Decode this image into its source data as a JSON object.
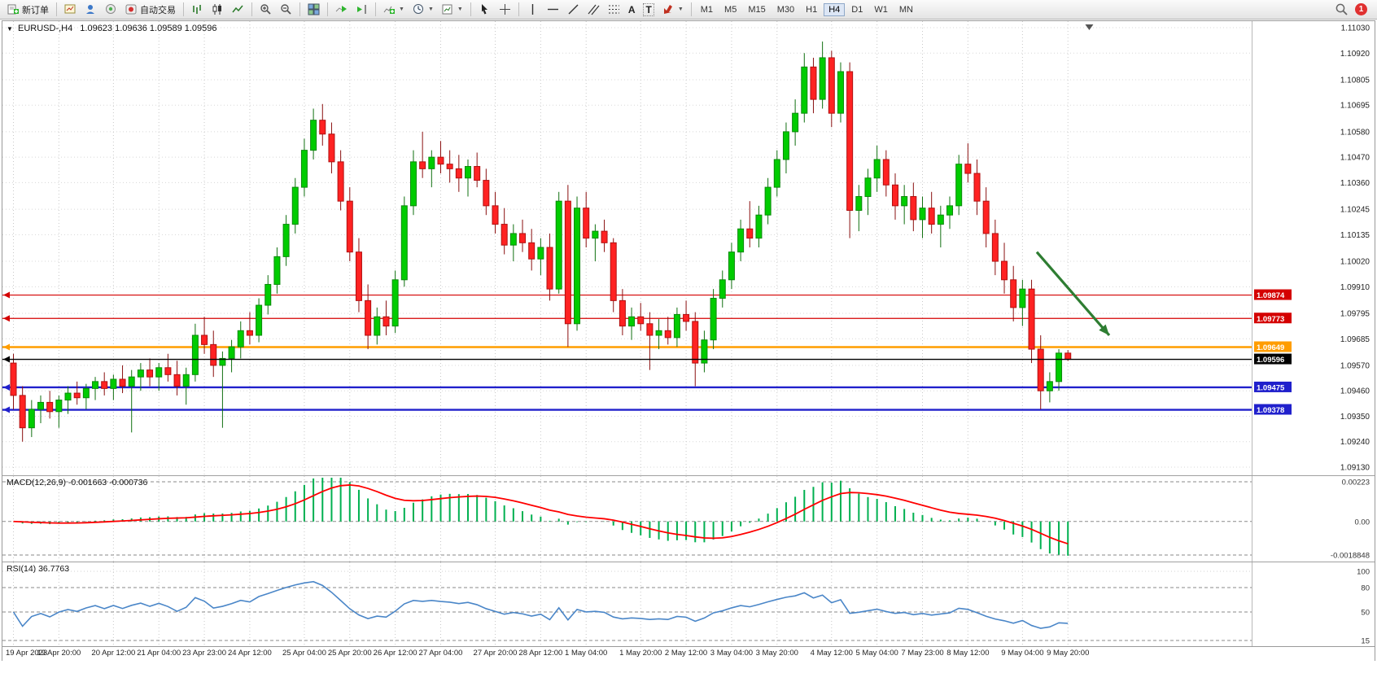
{
  "toolbar": {
    "new_order_label": "新订单",
    "autotrading_label": "自动交易",
    "timeframes": [
      "M1",
      "M5",
      "M15",
      "M30",
      "H1",
      "H4",
      "D1",
      "W1",
      "MN"
    ],
    "active_timeframe": "H4",
    "notification_count": "1",
    "text_tool_label": "A",
    "textbox_tool_label": "T"
  },
  "chart": {
    "symbol_period": "EURUSD-,H4",
    "ohlc_text": "1.09623 1.09636 1.09589 1.09596",
    "macd_label": "MACD(12,26,9) -0.001663 -0.000736",
    "rsi_label": "RSI(14) 36.7763"
  },
  "chart_data": [
    {
      "type": "candlestick",
      "symbol": "EURUSD",
      "period": "H4",
      "up_color": "#00CC00",
      "down_color": "#FF2222",
      "up_border": "#0A8A0A",
      "down_border": "#B01010",
      "x_labels": [
        "19 Apr 2023",
        "19 Apr 20:00",
        "20 Apr 12:00",
        "21 Apr 04:00",
        "23 Apr 23:00",
        "24 Apr 12:00",
        "25 Apr 04:00",
        "25 Apr 20:00",
        "26 Apr 12:00",
        "27 Apr 04:00",
        "27 Apr 20:00",
        "28 Apr 12:00",
        "1 May 04:00",
        "1 May 20:00",
        "2 May 12:00",
        "3 May 04:00",
        "3 May 20:00",
        "4 May 12:00",
        "5 May 04:00",
        "7 May 23:00",
        "8 May 12:00",
        "9 May 04:00",
        "9 May 20:00"
      ],
      "y_ticks": [
        "1.11030",
        "1.10920",
        "1.10805",
        "1.10695",
        "1.10580",
        "1.10470",
        "1.10360",
        "1.10245",
        "1.10135",
        "1.10020",
        "1.09910",
        "1.09795",
        "1.09685",
        "1.09570",
        "1.09460",
        "1.09350",
        "1.09240",
        "1.09130"
      ],
      "candles": [
        [
          1.0958,
          1.0962,
          1.0938,
          1.0944
        ],
        [
          1.0944,
          1.0948,
          1.0924,
          1.093
        ],
        [
          1.093,
          1.0942,
          1.0926,
          1.0938
        ],
        [
          1.0938,
          1.0944,
          1.0932,
          1.0941
        ],
        [
          1.0941,
          1.0946,
          1.0934,
          1.0937
        ],
        [
          1.0937,
          1.0944,
          1.093,
          1.0942
        ],
        [
          1.0942,
          1.0948,
          1.0936,
          1.0945
        ],
        [
          1.0945,
          1.095,
          1.094,
          1.0943
        ],
        [
          1.0943,
          1.0949,
          1.0938,
          1.0947
        ],
        [
          1.0947,
          1.0952,
          1.0942,
          1.095
        ],
        [
          1.095,
          1.0954,
          1.0944,
          1.0947
        ],
        [
          1.0947,
          1.0953,
          1.0942,
          1.0951
        ],
        [
          1.0951,
          1.0957,
          1.0945,
          1.0948
        ],
        [
          1.0948,
          1.0955,
          1.0928,
          1.0952
        ],
        [
          1.0952,
          1.0958,
          1.0946,
          1.0955
        ],
        [
          1.0955,
          1.096,
          1.0948,
          1.0952
        ],
        [
          1.0952,
          1.0958,
          1.0946,
          1.0956
        ],
        [
          1.0956,
          1.0962,
          1.095,
          1.0953
        ],
        [
          1.0953,
          1.0959,
          1.0944,
          1.0948
        ],
        [
          1.0948,
          1.0956,
          1.094,
          1.0953
        ],
        [
          1.0953,
          1.0975,
          1.095,
          1.097
        ],
        [
          1.097,
          1.0978,
          1.0962,
          1.0966
        ],
        [
          1.0966,
          1.0972,
          1.0952,
          1.0957
        ],
        [
          1.0957,
          1.0963,
          1.093,
          1.096
        ],
        [
          1.096,
          1.0968,
          1.0954,
          1.0965
        ],
        [
          1.0965,
          1.0976,
          1.096,
          1.0972
        ],
        [
          1.0972,
          1.098,
          1.0966,
          1.097
        ],
        [
          1.097,
          1.0986,
          1.0967,
          1.0983
        ],
        [
          1.0983,
          1.0996,
          1.0979,
          1.0992
        ],
        [
          1.0992,
          1.1008,
          1.0988,
          1.1004
        ],
        [
          1.1004,
          1.1022,
          1.1,
          1.1018
        ],
        [
          1.1018,
          1.1038,
          1.1014,
          1.1034
        ],
        [
          1.1034,
          1.1055,
          1.103,
          1.105
        ],
        [
          1.105,
          1.1068,
          1.1046,
          1.1063
        ],
        [
          1.1063,
          1.107,
          1.1052,
          1.1057
        ],
        [
          1.1057,
          1.1062,
          1.104,
          1.1045
        ],
        [
          1.1045,
          1.105,
          1.1024,
          1.1028
        ],
        [
          1.1028,
          1.1034,
          1.1002,
          1.1006
        ],
        [
          1.1006,
          1.1012,
          1.098,
          1.0985
        ],
        [
          1.0985,
          1.0992,
          1.0964,
          1.097
        ],
        [
          1.097,
          1.0982,
          1.0966,
          1.0978
        ],
        [
          1.0978,
          1.0985,
          1.097,
          1.0974
        ],
        [
          1.0974,
          1.0998,
          1.0971,
          1.0994
        ],
        [
          1.0994,
          1.103,
          1.0991,
          1.1026
        ],
        [
          1.1026,
          1.105,
          1.1022,
          1.1045
        ],
        [
          1.1045,
          1.1058,
          1.1038,
          1.1042
        ],
        [
          1.1042,
          1.105,
          1.1034,
          1.1047
        ],
        [
          1.1047,
          1.1054,
          1.104,
          1.1044
        ],
        [
          1.1044,
          1.105,
          1.1036,
          1.1042
        ],
        [
          1.1042,
          1.1048,
          1.1032,
          1.1038
        ],
        [
          1.1038,
          1.1046,
          1.103,
          1.1043
        ],
        [
          1.1043,
          1.1049,
          1.1034,
          1.1037
        ],
        [
          1.1037,
          1.1042,
          1.1022,
          1.1026
        ],
        [
          1.1026,
          1.1032,
          1.1014,
          1.1018
        ],
        [
          1.1018,
          1.1025,
          1.1005,
          1.1009
        ],
        [
          1.1009,
          1.1018,
          1.1002,
          1.1014
        ],
        [
          1.1014,
          1.102,
          1.1006,
          1.101
        ],
        [
          1.101,
          1.1016,
          1.0998,
          1.1003
        ],
        [
          1.1003,
          1.1012,
          1.0996,
          1.1008
        ],
        [
          1.1008,
          1.1014,
          1.0985,
          1.099
        ],
        [
          1.099,
          1.1032,
          1.0988,
          1.1028
        ],
        [
          1.1028,
          1.1035,
          1.0965,
          1.0975
        ],
        [
          1.0975,
          1.103,
          1.0972,
          1.1025
        ],
        [
          1.1025,
          1.1032,
          1.1008,
          1.1012
        ],
        [
          1.1012,
          1.1018,
          1.1002,
          1.1015
        ],
        [
          1.1015,
          1.102,
          1.1006,
          1.101
        ],
        [
          1.101,
          1.1012,
          1.098,
          1.0985
        ],
        [
          1.0985,
          1.099,
          1.097,
          1.0974
        ],
        [
          1.0974,
          1.0982,
          1.0968,
          1.0978
        ],
        [
          1.0978,
          1.0984,
          1.0972,
          1.0975
        ],
        [
          1.0975,
          1.098,
          1.0955,
          1.097
        ],
        [
          1.097,
          1.0977,
          1.0964,
          1.0972
        ],
        [
          1.0972,
          1.0978,
          1.0966,
          1.0969
        ],
        [
          1.0969,
          1.0982,
          1.0965,
          1.0979
        ],
        [
          1.0979,
          1.0985,
          1.0972,
          1.0976
        ],
        [
          1.0976,
          1.098,
          1.0948,
          1.0958
        ],
        [
          1.0958,
          1.0972,
          1.0954,
          1.0968
        ],
        [
          1.0968,
          1.099,
          1.0964,
          1.0986
        ],
        [
          1.0986,
          1.0998,
          1.0982,
          1.0994
        ],
        [
          1.0994,
          1.101,
          1.099,
          1.1006
        ],
        [
          1.1006,
          1.102,
          1.1002,
          1.1016
        ],
        [
          1.1016,
          1.1028,
          1.1008,
          1.1012
        ],
        [
          1.1012,
          1.1026,
          1.1008,
          1.1022
        ],
        [
          1.1022,
          1.1038,
          1.1018,
          1.1034
        ],
        [
          1.1034,
          1.105,
          1.103,
          1.1046
        ],
        [
          1.1046,
          1.1062,
          1.104,
          1.1058
        ],
        [
          1.1058,
          1.1072,
          1.1052,
          1.1066
        ],
        [
          1.1066,
          1.1092,
          1.1062,
          1.1086
        ],
        [
          1.1086,
          1.109,
          1.1066,
          1.1072
        ],
        [
          1.1072,
          1.1097,
          1.1068,
          1.109
        ],
        [
          1.109,
          1.1093,
          1.106,
          1.1066
        ],
        [
          1.1066,
          1.1088,
          1.1062,
          1.1084
        ],
        [
          1.1084,
          1.1088,
          1.1012,
          1.1024
        ],
        [
          1.1024,
          1.1035,
          1.1015,
          1.103
        ],
        [
          1.103,
          1.1042,
          1.1022,
          1.1038
        ],
        [
          1.1038,
          1.1052,
          1.1032,
          1.1046
        ],
        [
          1.1046,
          1.105,
          1.103,
          1.1035
        ],
        [
          1.1035,
          1.104,
          1.102,
          1.1026
        ],
        [
          1.1026,
          1.1035,
          1.1018,
          1.103
        ],
        [
          1.103,
          1.1036,
          1.1015,
          1.102
        ],
        [
          1.102,
          1.103,
          1.1012,
          1.1025
        ],
        [
          1.1025,
          1.1032,
          1.1014,
          1.1018
        ],
        [
          1.1018,
          1.1026,
          1.1008,
          1.1022
        ],
        [
          1.1022,
          1.103,
          1.1016,
          1.1026
        ],
        [
          1.1026,
          1.1048,
          1.1022,
          1.1044
        ],
        [
          1.1044,
          1.1053,
          1.1036,
          1.104
        ],
        [
          1.104,
          1.1046,
          1.1022,
          1.1028
        ],
        [
          1.1028,
          1.1034,
          1.1008,
          1.1014
        ],
        [
          1.1014,
          1.102,
          1.0996,
          1.1002
        ],
        [
          1.1002,
          1.101,
          1.0988,
          1.0994
        ],
        [
          1.0994,
          1.1,
          1.0976,
          1.0982
        ],
        [
          1.0982,
          1.0994,
          1.0974,
          1.099
        ],
        [
          1.099,
          1.0994,
          1.0958,
          1.0964
        ],
        [
          1.0964,
          1.097,
          1.0938,
          1.0946
        ],
        [
          1.0946,
          1.0954,
          1.0941,
          1.095
        ],
        [
          1.095,
          1.0964,
          1.0946,
          1.09623
        ],
        [
          1.09623,
          1.09636,
          1.09589,
          1.09596
        ]
      ],
      "hlines": [
        {
          "price": 1.09874,
          "label": "1.09874",
          "color": "#D40000",
          "width": 1.2
        },
        {
          "price": 1.09773,
          "label": "1.09773",
          "color": "#D40000",
          "width": 1.2
        },
        {
          "price": 1.09649,
          "label": "1.09649",
          "color": "#FF9D00",
          "width": 2.4
        },
        {
          "price": 1.09475,
          "label": "1.09475",
          "color": "#2020CC",
          "width": 2.4
        },
        {
          "price": 1.09378,
          "label": "1.09378",
          "color": "#2020CC",
          "width": 2.4
        }
      ],
      "current_price": {
        "price": 1.09596,
        "label": "1.09596",
        "color": "#000000"
      },
      "arrow": {
        "x_frac1": 0.828,
        "price1": 1.1006,
        "x_frac2": 0.886,
        "price2": 1.097,
        "color": "#2E7D32"
      },
      "shift_marker_frac": 0.87
    },
    {
      "type": "bar",
      "name": "MACD",
      "label": "MACD(12,26,9) -0.001663 -0.000736",
      "fast": 12,
      "slow": 26,
      "signal_period": 9,
      "current_values": {
        "macd": -0.001663,
        "signal": -0.000736
      },
      "y_ticks": [
        {
          "v": 0.00223,
          "label": "0.00223"
        },
        {
          "v": 0,
          "label": "0.00"
        },
        {
          "v": -0.0018848,
          "label": "-0.0018848"
        }
      ],
      "hist_color": "#00B050",
      "signal_color": "#FF0000"
    },
    {
      "type": "line",
      "name": "RSI",
      "label": "RSI(14) 36.7763",
      "period": 14,
      "value": 36.7763,
      "levels": [
        80,
        50,
        15
      ],
      "y_ticks": [
        {
          "v": 100,
          "label": "100"
        },
        {
          "v": 80,
          "label": "80"
        },
        {
          "v": 50,
          "label": "50"
        },
        {
          "v": 15,
          "label": "15"
        }
      ],
      "line_color": "#4A86C8"
    }
  ]
}
